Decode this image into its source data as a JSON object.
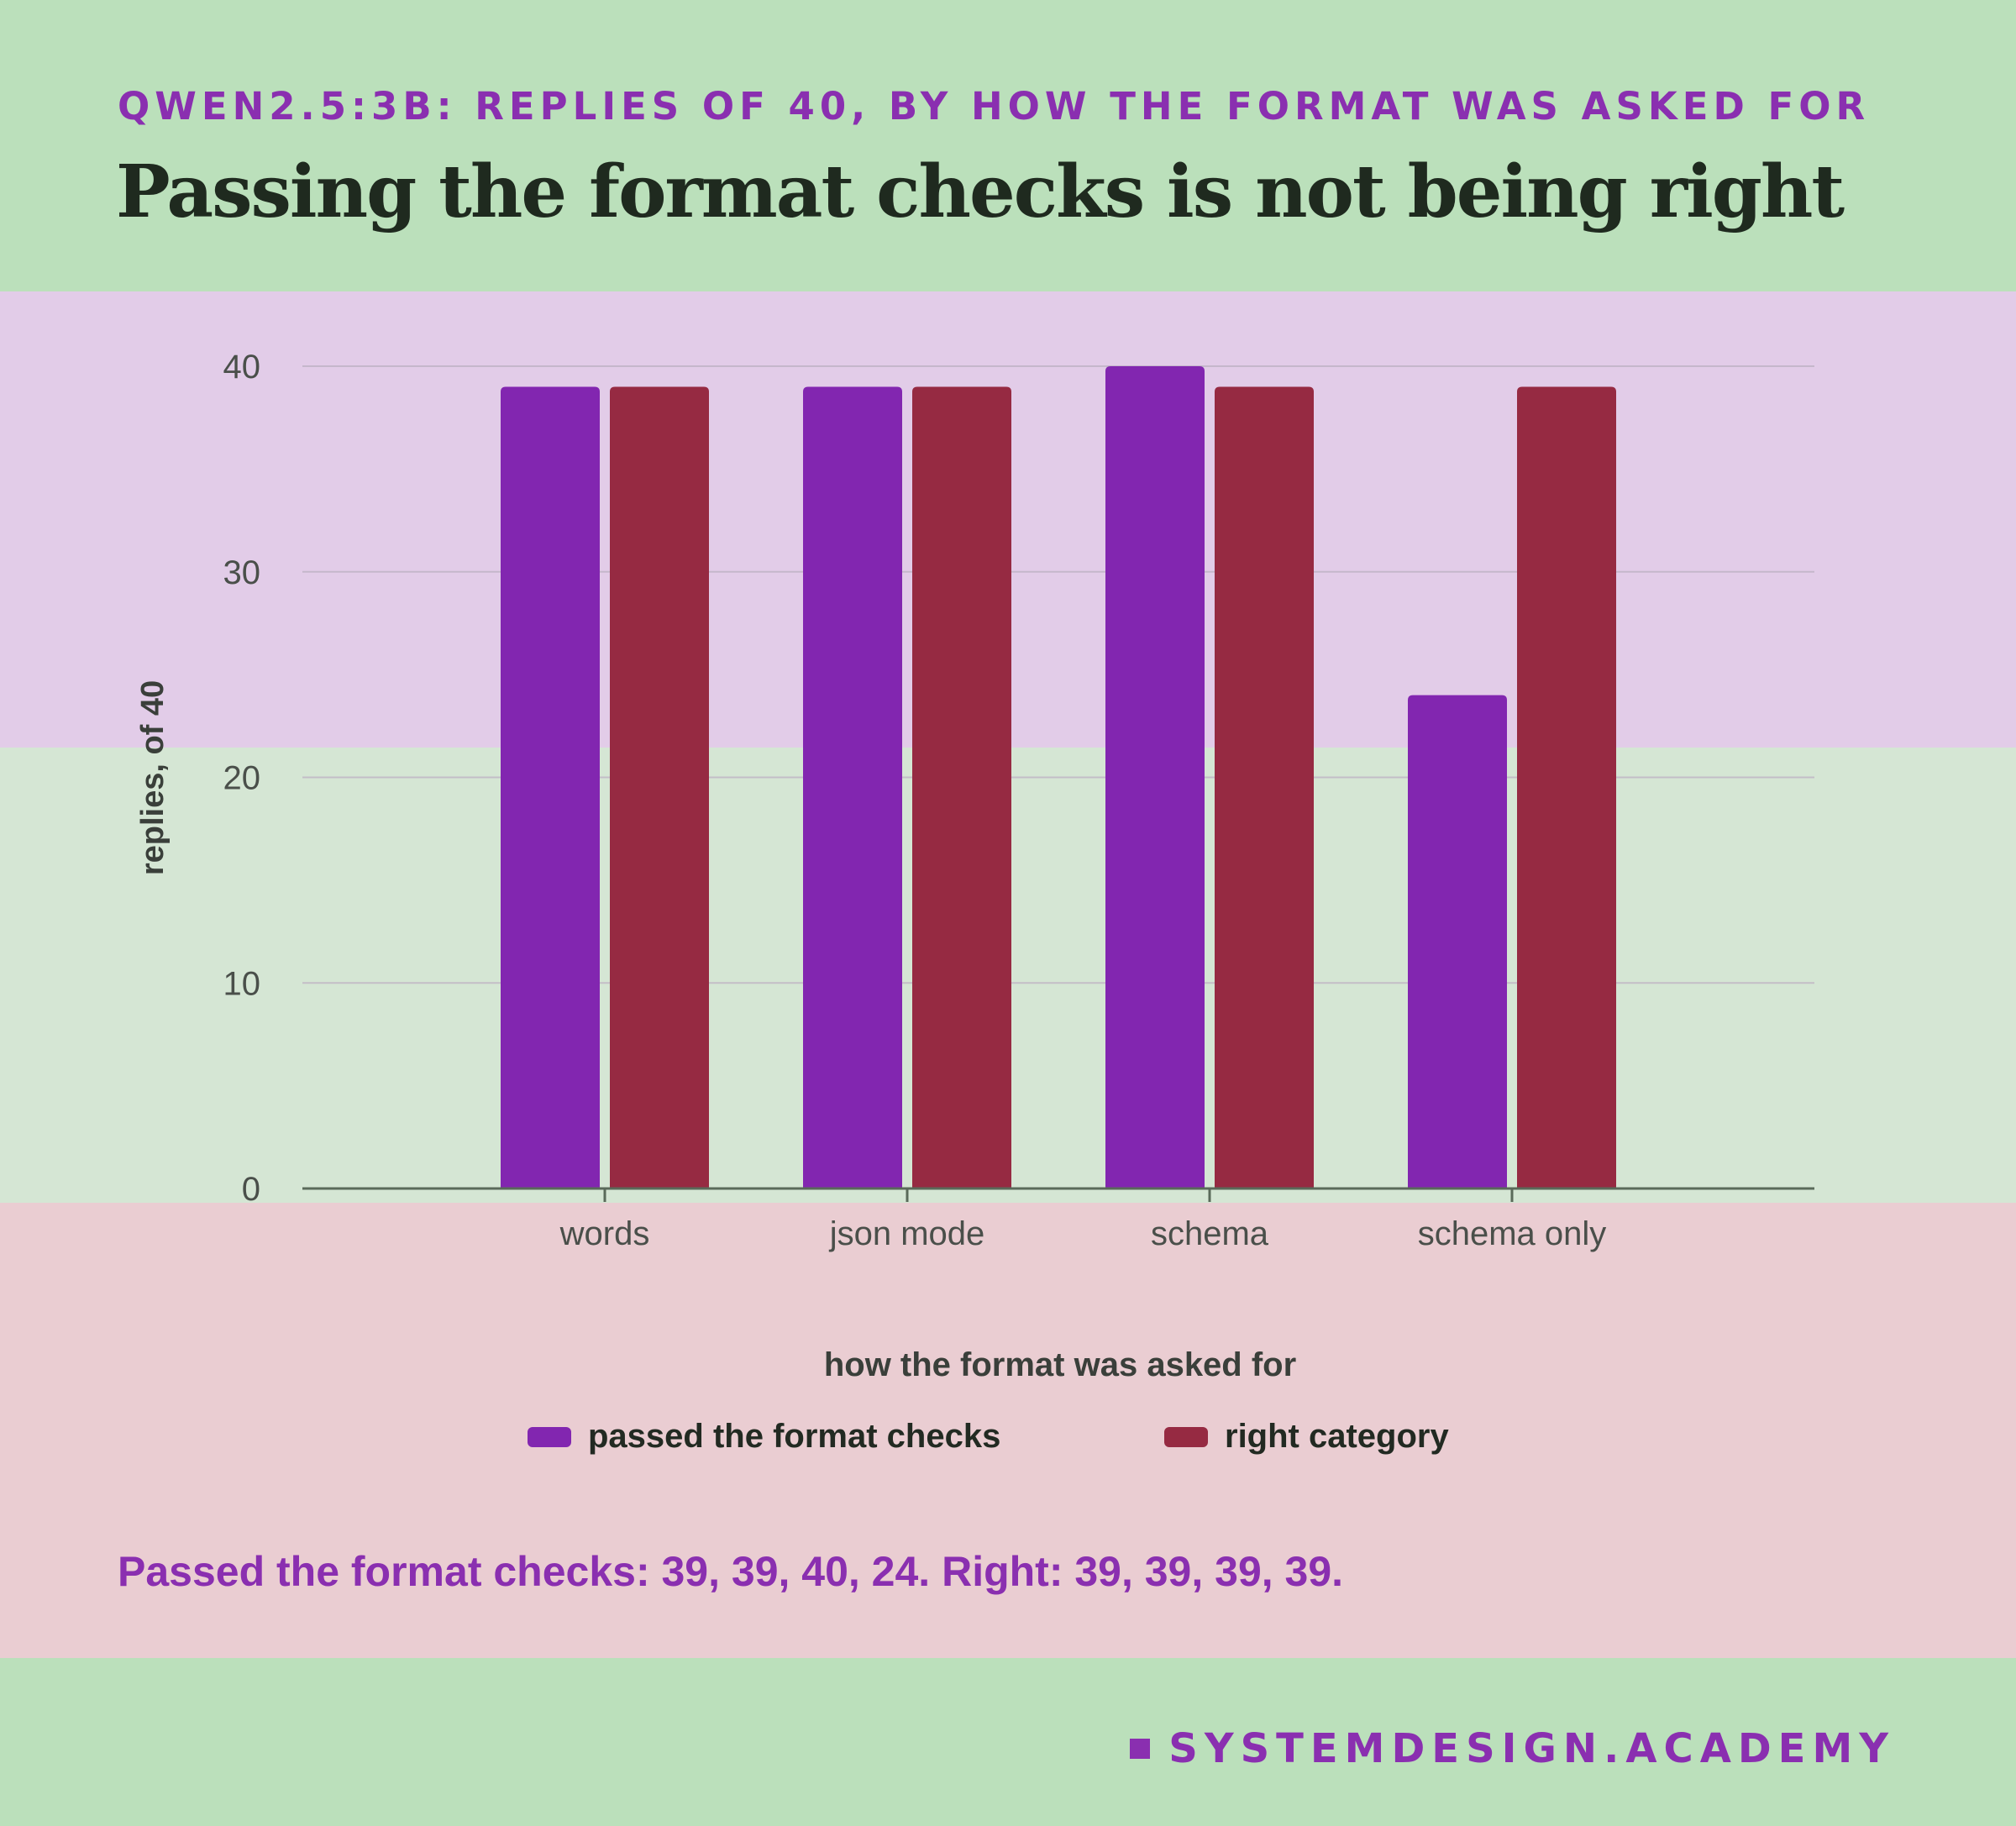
{
  "kicker": "QWEN2.5:3B: REPLIES OF 40, BY HOW THE FORMAT WAS ASKED FOR",
  "headline": "Passing the format checks is not being right",
  "summary": "Passed the format checks: 39, 39, 40, 24. Right: 39, 39, 39, 39.",
  "brand": "SYSTEMDESIGN.ACADEMY",
  "colors": {
    "passed": "#8226b0",
    "right": "#962a42",
    "accent": "#8a2fb0"
  },
  "chart_data": {
    "type": "bar",
    "categories": [
      "words",
      "json mode",
      "schema",
      "schema only"
    ],
    "series": [
      {
        "name": "passed the format checks",
        "values": [
          39,
          39,
          40,
          24
        ]
      },
      {
        "name": "right category",
        "values": [
          39,
          39,
          39,
          39
        ]
      }
    ],
    "xlabel": "how the format was asked for",
    "ylabel": "replies, of 40",
    "ylim": [
      0,
      40
    ],
    "yticks": [
      0,
      10,
      20,
      30,
      40
    ],
    "grid": true,
    "legend_position": "bottom"
  }
}
